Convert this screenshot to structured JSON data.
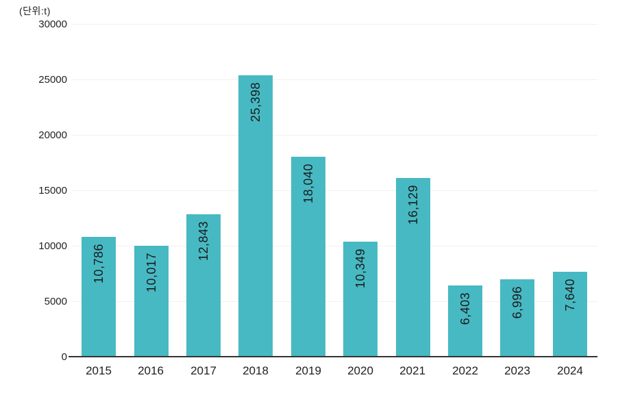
{
  "unit": "(단위:t)",
  "colors": {
    "bar": "#47b9c3",
    "bar_label": "#1a1a1a",
    "axis_line": "#333333",
    "gridline": "#f0f0f0",
    "tick_label": "#1f1f1f",
    "background": "#ffffff"
  },
  "chart_data": {
    "type": "bar",
    "title": "",
    "unit": "(단위:t)",
    "categories": [
      "2015",
      "2016",
      "2017",
      "2018",
      "2019",
      "2020",
      "2021",
      "2022",
      "2023",
      "2024"
    ],
    "values": [
      10786,
      10017,
      12843,
      25398,
      18040,
      10349,
      16129,
      6403,
      6996,
      7640
    ],
    "value_labels": [
      "10,786",
      "10,017",
      "12,843",
      "25,398",
      "18,040",
      "10,349",
      "16,129",
      "6,403",
      "6,996",
      "7,640"
    ],
    "xlabel": "",
    "ylabel": "",
    "ylim": [
      0,
      30000
    ],
    "yticks": [
      0,
      5000,
      10000,
      15000,
      20000,
      25000,
      30000
    ],
    "ytick_labels": [
      "0",
      "5000",
      "10000",
      "15000",
      "20000",
      "25000",
      "30000"
    ],
    "grid": "horizontal",
    "legend": "none",
    "bar_label_position": "inside-top",
    "bar_label_rotation": -90
  }
}
